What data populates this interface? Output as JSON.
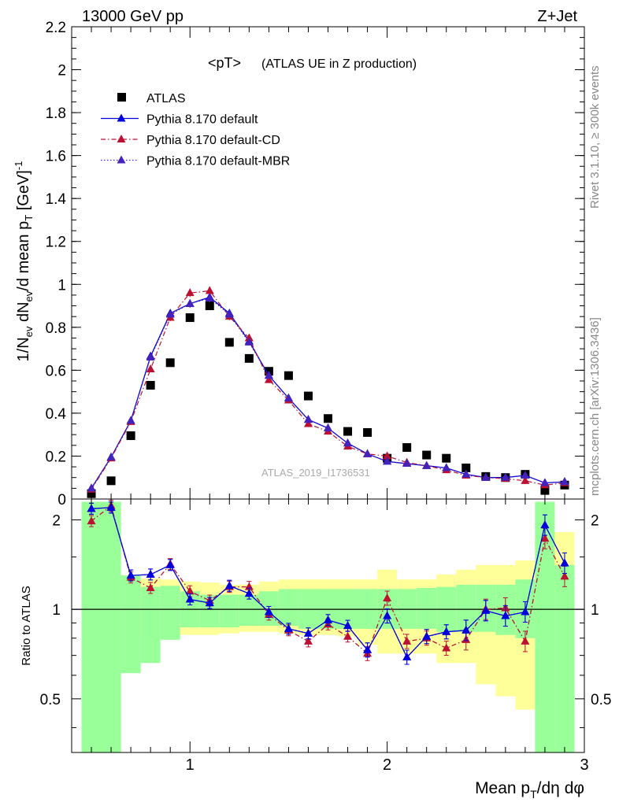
{
  "header": {
    "left": "13000 GeV pp",
    "right": "Z+Jet"
  },
  "side": {
    "rivet": "Rivet 3.1.10, ≥ 300k events",
    "mcplots": "mcplots.cern.ch [arXiv:1306.3436]"
  },
  "chart_data": [
    {
      "type": "scatter",
      "panel": "main",
      "title": "<pT> (ATLAS UE in Z production)",
      "title_main": "<pT>",
      "title_sub": "(ATLAS UE in Z production)",
      "ylabel": "1/N_ev dN_ev/d mean p_T [GeV]^-1",
      "watermark": "ATLAS_2019_I1736531",
      "xlim": [
        0.4,
        3.0
      ],
      "ylim": [
        0,
        2.2
      ],
      "yticks": [
        0,
        0.2,
        0.4,
        0.6,
        0.8,
        1,
        1.2,
        1.4,
        1.6,
        1.8,
        2,
        2.2
      ],
      "ytick_labels": [
        "0",
        "0.2",
        "0.4",
        "0.6",
        "0.8",
        "1",
        "1.2",
        "1.4",
        "1.6",
        "1.8",
        "2",
        "2.2"
      ],
      "legend_position": "top-left",
      "x": [
        0.5,
        0.6,
        0.7,
        0.8,
        0.9,
        1.0,
        1.1,
        1.2,
        1.3,
        1.4,
        1.5,
        1.6,
        1.7,
        1.8,
        1.9,
        2.0,
        2.1,
        2.2,
        2.3,
        2.4,
        2.5,
        2.6,
        2.7,
        2.8,
        2.9
      ],
      "series": [
        {
          "name": "ATLAS",
          "style": "data",
          "color": "#000000",
          "values": [
            0.025,
            0.085,
            0.295,
            0.53,
            0.635,
            0.845,
            0.9,
            0.73,
            0.655,
            0.595,
            0.575,
            0.48,
            0.375,
            0.315,
            0.31,
            0.19,
            0.24,
            0.205,
            0.19,
            0.145,
            0.105,
            0.1,
            0.115,
            0.04,
            0.065
          ]
        },
        {
          "name": "Pythia 8.170 default",
          "style": "solid",
          "color": "#0000dd",
          "values": [
            0.05,
            0.195,
            0.365,
            0.665,
            0.865,
            0.91,
            0.94,
            0.865,
            0.735,
            0.575,
            0.47,
            0.37,
            0.33,
            0.26,
            0.21,
            0.175,
            0.165,
            0.155,
            0.145,
            0.115,
            0.1,
            0.1,
            0.11,
            0.075,
            0.08
          ]
        },
        {
          "name": "Pythia 8.170 default-CD",
          "style": "dashdot",
          "color": "#bb1133",
          "values": [
            0.045,
            0.19,
            0.36,
            0.605,
            0.845,
            0.96,
            0.97,
            0.85,
            0.75,
            0.555,
            0.46,
            0.35,
            0.315,
            0.245,
            0.21,
            0.2,
            0.17,
            0.155,
            0.135,
            0.11,
            0.1,
            0.095,
            0.085,
            0.065,
            0.075
          ]
        },
        {
          "name": "Pythia 8.170 default-MBR",
          "style": "dotted",
          "color": "#4422bb",
          "values": [
            0.05,
            0.195,
            0.365,
            0.66,
            0.86,
            0.91,
            0.935,
            0.86,
            0.73,
            0.575,
            0.47,
            0.37,
            0.33,
            0.26,
            0.21,
            0.175,
            0.165,
            0.155,
            0.145,
            0.115,
            0.1,
            0.1,
            0.11,
            0.075,
            0.08
          ]
        }
      ]
    },
    {
      "type": "line",
      "panel": "ratio",
      "ylabel": "Ratio to ATLAS",
      "xlabel": "Mean p_T/dη dφ",
      "xlim": [
        0.4,
        3.0
      ],
      "ylim": [
        0.33,
        2.35
      ],
      "xticks": [
        1,
        2,
        3
      ],
      "xtick_labels": [
        "1",
        "2",
        "3"
      ],
      "yticks": [
        0.5,
        1,
        2
      ],
      "ytick_labels": [
        "0.5",
        "1",
        "2"
      ],
      "x": [
        0.5,
        0.6,
        0.7,
        0.8,
        0.9,
        1.0,
        1.1,
        1.2,
        1.3,
        1.4,
        1.5,
        1.6,
        1.7,
        1.8,
        1.9,
        2.0,
        2.1,
        2.2,
        2.3,
        2.4,
        2.5,
        2.6,
        2.7,
        2.8,
        2.9
      ],
      "bands": {
        "yellow_color": "#ffff99",
        "green_color": "#99ff99",
        "yellow": [
          [
            0.3,
            2.3
          ],
          [
            0.3,
            2.3
          ],
          [
            0.78,
            1.3
          ],
          [
            0.8,
            1.27
          ],
          [
            0.82,
            1.26
          ],
          [
            0.82,
            1.24
          ],
          [
            0.82,
            1.23
          ],
          [
            0.83,
            1.21
          ],
          [
            0.84,
            1.21
          ],
          [
            0.84,
            1.24
          ],
          [
            0.83,
            1.26
          ],
          [
            0.82,
            1.26
          ],
          [
            0.82,
            1.26
          ],
          [
            0.81,
            1.26
          ],
          [
            0.76,
            1.26
          ],
          [
            0.71,
            1.36
          ],
          [
            0.71,
            1.26
          ],
          [
            0.71,
            1.26
          ],
          [
            0.66,
            1.31
          ],
          [
            0.66,
            1.36
          ],
          [
            0.56,
            1.41
          ],
          [
            0.51,
            1.41
          ],
          [
            0.46,
            1.46
          ],
          [
            0.3,
            2.3
          ],
          [
            0.3,
            1.82
          ]
        ],
        "green": [
          [
            0.3,
            2.3
          ],
          [
            0.3,
            2.3
          ],
          [
            0.61,
            1.3
          ],
          [
            0.66,
            1.19
          ],
          [
            0.79,
            1.2
          ],
          [
            0.87,
            1.15
          ],
          [
            0.87,
            1.12
          ],
          [
            0.87,
            1.12
          ],
          [
            0.88,
            1.12
          ],
          [
            0.88,
            1.15
          ],
          [
            0.88,
            1.17
          ],
          [
            0.86,
            1.17
          ],
          [
            0.86,
            1.17
          ],
          [
            0.86,
            1.17
          ],
          [
            0.86,
            1.17
          ],
          [
            0.86,
            1.17
          ],
          [
            0.86,
            1.17
          ],
          [
            0.86,
            1.18
          ],
          [
            0.84,
            1.19
          ],
          [
            0.84,
            1.21
          ],
          [
            0.84,
            1.21
          ],
          [
            0.82,
            1.21
          ],
          [
            0.8,
            1.26
          ],
          [
            0.3,
            2.3
          ],
          [
            0.3,
            1.41
          ]
        ]
      },
      "series": [
        {
          "name": "Pythia 8.170 default",
          "color": "#0000dd",
          "values": [
            2.18,
            2.2,
            1.3,
            1.31,
            1.41,
            1.08,
            1.05,
            1.2,
            1.13,
            0.98,
            0.86,
            0.83,
            0.92,
            0.88,
            0.73,
            0.95,
            0.69,
            0.81,
            0.84,
            0.85,
            0.99,
            0.95,
            0.98,
            1.92,
            1.43
          ]
        },
        {
          "name": "Pythia 8.170 default-CD",
          "color": "#bb1133",
          "values": [
            1.98,
            2.23,
            1.28,
            1.18,
            1.42,
            1.15,
            1.07,
            1.19,
            1.19,
            0.96,
            0.85,
            0.78,
            0.89,
            0.81,
            0.71,
            1.09,
            0.78,
            0.8,
            0.74,
            0.79,
            1.0,
            1.01,
            0.78,
            1.73,
            1.29
          ]
        },
        {
          "name": "Pythia 8.170 default-MBR",
          "color": "#4422bb",
          "values": [
            2.18,
            2.2,
            1.3,
            1.31,
            1.41,
            1.08,
            1.05,
            1.2,
            1.13,
            0.98,
            0.86,
            0.83,
            0.92,
            0.88,
            0.73,
            0.95,
            0.69,
            0.81,
            0.84,
            0.85,
            0.99,
            0.95,
            0.98,
            1.92,
            1.43
          ]
        }
      ]
    }
  ]
}
